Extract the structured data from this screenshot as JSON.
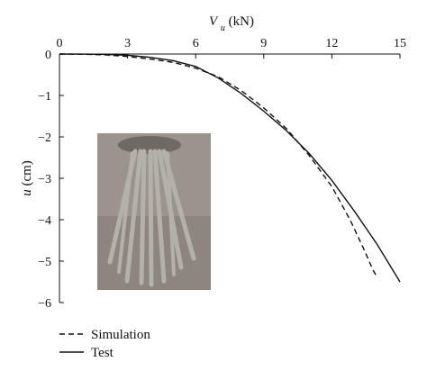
{
  "chart_data": {
    "type": "line",
    "xlabel": {
      "var": "V",
      "sub": "u",
      "unit": " (kN)"
    },
    "ylabel": {
      "var": "u",
      "unit": " (cm)"
    },
    "xlim": [
      0,
      15
    ],
    "ylim": [
      -6,
      0
    ],
    "x_ticks": [
      0,
      3,
      6,
      9,
      12,
      15
    ],
    "y_ticks": [
      0,
      -1,
      -2,
      -3,
      -4,
      -5,
      -6
    ],
    "x_tick_labels": [
      "0",
      "3",
      "6",
      "9",
      "12",
      "15"
    ],
    "y_tick_labels": [
      "0",
      "−1",
      "−2",
      "−3",
      "−4",
      "−5",
      "−6"
    ],
    "x_axis_position": "top",
    "grid": false,
    "legend_position": "bottom-left",
    "series": [
      {
        "name": "Simulation",
        "style": "dashed",
        "color": "#111111",
        "points": [
          [
            0,
            0
          ],
          [
            1,
            -0.005
          ],
          [
            2,
            -0.02
          ],
          [
            3,
            -0.06
          ],
          [
            4,
            -0.12
          ],
          [
            5,
            -0.2
          ],
          [
            6,
            -0.34
          ],
          [
            7,
            -0.55
          ],
          [
            8,
            -0.88
          ],
          [
            9,
            -1.3
          ],
          [
            10,
            -1.8
          ],
          [
            11,
            -2.45
          ],
          [
            12,
            -3.2
          ],
          [
            12.8,
            -4.0
          ],
          [
            13.4,
            -4.7
          ],
          [
            13.8,
            -5.2
          ],
          [
            14.0,
            -5.4
          ]
        ]
      },
      {
        "name": "Test",
        "style": "solid",
        "color": "#111111",
        "points": [
          [
            0,
            0
          ],
          [
            1,
            -0.002
          ],
          [
            2,
            -0.008
          ],
          [
            3,
            -0.03
          ],
          [
            4,
            -0.08
          ],
          [
            5,
            -0.16
          ],
          [
            6,
            -0.3
          ],
          [
            7,
            -0.58
          ],
          [
            8,
            -0.95
          ],
          [
            9,
            -1.38
          ],
          [
            10,
            -1.85
          ],
          [
            11,
            -2.4
          ],
          [
            12,
            -3.05
          ],
          [
            13,
            -3.8
          ],
          [
            14,
            -4.6
          ],
          [
            15,
            -5.5
          ]
        ]
      }
    ]
  },
  "photo_inset": {
    "background": "#9a948c",
    "table_top": "#6f6963",
    "leg_color": "#b4b0aa"
  }
}
